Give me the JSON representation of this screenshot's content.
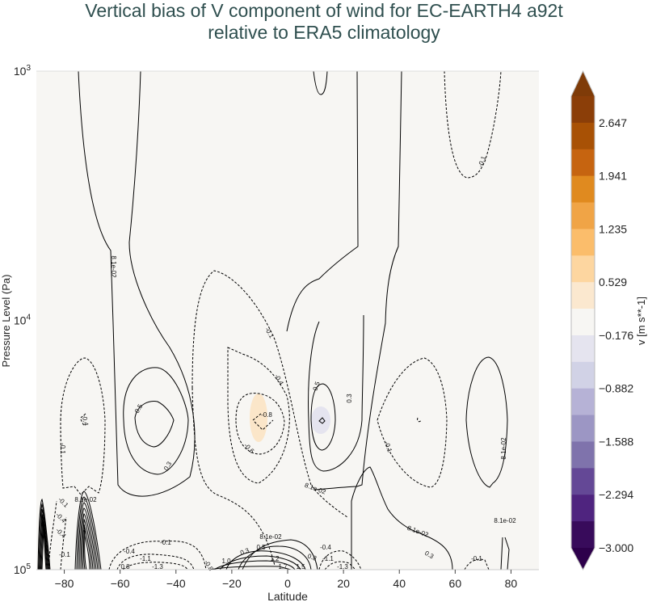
{
  "chart_data": {
    "type": "contour",
    "title_lines": [
      "Vertical bias of V component of wind for EC-EARTH4 a92t",
      "relative to ERA5 climatology"
    ],
    "xlabel": "Latitude",
    "ylabel": "Pressure Level (Pa)",
    "xlim": [
      -90,
      90
    ],
    "ylim": [
      100000,
      1000
    ],
    "yscale": "log",
    "yaxis_reversed": true,
    "x_ticks": [
      "−80",
      "−60",
      "−40",
      "−20",
      "0",
      "20",
      "40",
      "60",
      "80"
    ],
    "x_tick_values": [
      -80,
      -60,
      -40,
      -20,
      0,
      20,
      40,
      60,
      80
    ],
    "y_ticks": [
      {
        "base": "10",
        "exp": "3"
      },
      {
        "base": "10",
        "exp": "4"
      },
      {
        "base": "10",
        "exp": "5"
      }
    ],
    "y_tick_values": [
      1000,
      10000,
      100000
    ],
    "colorbar": {
      "label": "v [m s**-1]",
      "range": [
        -3.0,
        3.0
      ],
      "extend": "both",
      "tick_labels": [
        "2.647",
        "1.941",
        "1.235",
        "0.529",
        "−0.176",
        "−0.882",
        "−1.588",
        "−2.294",
        "−3.000"
      ],
      "tick_values": [
        2.647,
        1.941,
        1.235,
        0.529,
        -0.176,
        -0.882,
        -1.588,
        -2.294,
        -3.0
      ],
      "colors_top_to_bottom": [
        "#8b3e08",
        "#a85105",
        "#c66410",
        "#e08a1f",
        "#f0a446",
        "#fbbd6b",
        "#fdd6a0",
        "#fbe8cf",
        "#f7f6f3",
        "#e5e4ef",
        "#d1d2e6",
        "#b6b2d6",
        "#9c96c4",
        "#7f73ac",
        "#644896",
        "#4f247f",
        "#380b5b"
      ],
      "over_color": "#7f3b08",
      "under_color": "#2d004b"
    },
    "background_color": "#f7f6f3",
    "contour_labels": [
      "8.1e-02",
      "-0.1",
      "0.5",
      "0.3",
      "-0.4",
      "-0.1",
      "-0.4",
      "-0.6",
      "-0.8",
      "0.5",
      "0.3",
      "-0.1",
      "8.1e-02",
      "8.1e-02",
      "8.1e-02",
      "8.1e-02",
      "8.1e-02",
      "-0.1",
      "-0.1",
      "-0.4",
      "8.1e-02",
      "-0.1",
      "-0.4",
      "-1.1",
      "-1.3",
      "0.8",
      "-0.8",
      "8.1e-02",
      "0.3",
      "0.5",
      "1.0",
      "1.2",
      "1.7",
      "1.5",
      "0.8",
      "-0.4",
      "-1.1",
      "-1.3",
      "0.3",
      "-0.1",
      "-0.1",
      "-0.4"
    ]
  }
}
